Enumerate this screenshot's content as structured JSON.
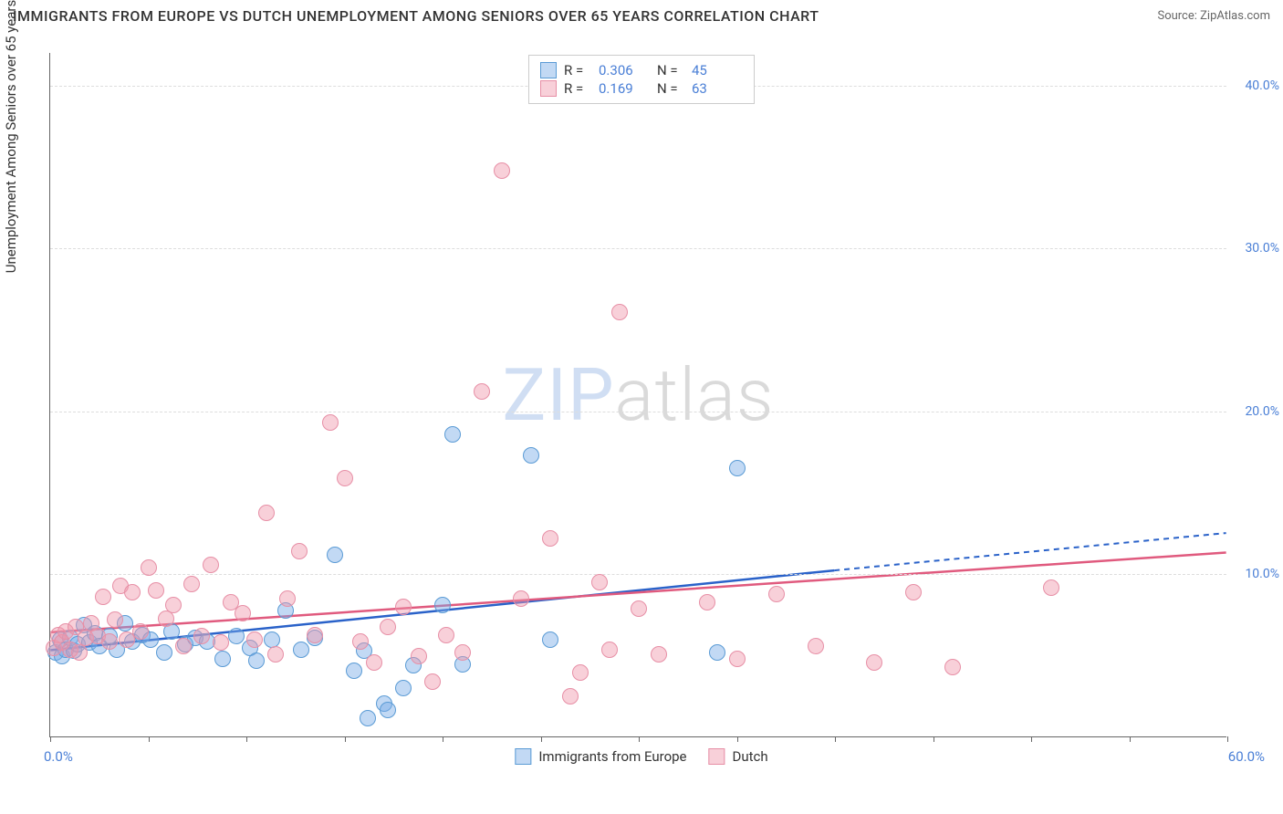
{
  "title": "IMMIGRANTS FROM EUROPE VS DUTCH UNEMPLOYMENT AMONG SENIORS OVER 65 YEARS CORRELATION CHART",
  "source": "Source: ZipAtlas.com",
  "ylabel": "Unemployment Among Seniors over 65 years",
  "x_min_label": "0.0%",
  "x_max_label": "60.0%",
  "watermark_a": "ZIP",
  "watermark_b": "atlas",
  "chart": {
    "type": "scatter",
    "xlim": [
      0,
      60
    ],
    "ylim": [
      0,
      42
    ],
    "y_ticks": [
      10,
      20,
      30,
      40
    ],
    "y_tick_labels": [
      "10.0%",
      "20.0%",
      "30.0%",
      "40.0%"
    ],
    "x_tick_positions": [
      0,
      5,
      10,
      15,
      20,
      25,
      30,
      35,
      40,
      45,
      50,
      55,
      60
    ],
    "tick_label_color": "#4a7fd6",
    "grid_color": "#dddddd",
    "background_color": "#ffffff",
    "marker_radius": 9
  },
  "series": [
    {
      "name": "Immigrants from Europe",
      "fill": "rgba(120,170,230,0.45)",
      "stroke": "#5a9bd5",
      "line_color": "#2a62c9",
      "line_dash": "none",
      "ext_dash": "6,5",
      "R": "0.306",
      "N": "45",
      "trend": {
        "x1": 0,
        "y1": 5.3,
        "x2": 40,
        "y2": 10.2,
        "ext_x": 60,
        "ext_y": 12.5
      },
      "points": [
        [
          0.3,
          5.2
        ],
        [
          0.5,
          6.0
        ],
        [
          0.6,
          5.0
        ],
        [
          0.8,
          5.4
        ],
        [
          1.0,
          6.1
        ],
        [
          1.2,
          5.3
        ],
        [
          1.4,
          5.7
        ],
        [
          1.7,
          6.9
        ],
        [
          2.0,
          5.8
        ],
        [
          2.3,
          6.4
        ],
        [
          2.5,
          5.6
        ],
        [
          3.0,
          6.2
        ],
        [
          3.4,
          5.4
        ],
        [
          3.8,
          7.0
        ],
        [
          4.2,
          5.9
        ],
        [
          4.7,
          6.3
        ],
        [
          5.1,
          6.0
        ],
        [
          5.8,
          5.2
        ],
        [
          6.2,
          6.5
        ],
        [
          6.9,
          5.7
        ],
        [
          7.4,
          6.1
        ],
        [
          8.0,
          5.9
        ],
        [
          8.8,
          4.8
        ],
        [
          9.5,
          6.2
        ],
        [
          10.2,
          5.5
        ],
        [
          10.5,
          4.7
        ],
        [
          11.3,
          6.0
        ],
        [
          12.0,
          7.8
        ],
        [
          12.8,
          5.4
        ],
        [
          13.5,
          6.1
        ],
        [
          14.5,
          11.2
        ],
        [
          15.5,
          4.1
        ],
        [
          16.0,
          5.3
        ],
        [
          16.2,
          1.2
        ],
        [
          17.0,
          2.1
        ],
        [
          17.2,
          1.7
        ],
        [
          18.0,
          3.0
        ],
        [
          18.5,
          4.4
        ],
        [
          20.0,
          8.1
        ],
        [
          20.5,
          18.6
        ],
        [
          21.0,
          4.5
        ],
        [
          24.5,
          17.3
        ],
        [
          25.5,
          6.0
        ],
        [
          34.0,
          5.2
        ],
        [
          35.0,
          16.5
        ]
      ]
    },
    {
      "name": "Dutch",
      "fill": "rgba(240,150,170,0.45)",
      "stroke": "#e78fa6",
      "line_color": "#e05a7e",
      "line_dash": "none",
      "ext_dash": "none",
      "R": "0.169",
      "N": "63",
      "trend": {
        "x1": 0,
        "y1": 6.4,
        "x2": 60,
        "y2": 11.3,
        "ext_x": 60,
        "ext_y": 11.3
      },
      "points": [
        [
          0.2,
          5.5
        ],
        [
          0.4,
          6.3
        ],
        [
          0.6,
          5.8
        ],
        [
          0.8,
          6.5
        ],
        [
          1.0,
          5.4
        ],
        [
          1.3,
          6.8
        ],
        [
          1.5,
          5.2
        ],
        [
          1.8,
          6.1
        ],
        [
          2.1,
          7.0
        ],
        [
          2.4,
          6.2
        ],
        [
          2.7,
          8.6
        ],
        [
          3.0,
          5.9
        ],
        [
          3.3,
          7.2
        ],
        [
          3.6,
          9.3
        ],
        [
          3.9,
          6.0
        ],
        [
          4.2,
          8.9
        ],
        [
          4.6,
          6.5
        ],
        [
          5.0,
          10.4
        ],
        [
          5.4,
          9.0
        ],
        [
          5.9,
          7.3
        ],
        [
          6.3,
          8.1
        ],
        [
          6.8,
          5.6
        ],
        [
          7.2,
          9.4
        ],
        [
          7.7,
          6.2
        ],
        [
          8.2,
          10.6
        ],
        [
          8.7,
          5.8
        ],
        [
          9.2,
          8.3
        ],
        [
          9.8,
          7.6
        ],
        [
          10.4,
          6.0
        ],
        [
          11.0,
          13.8
        ],
        [
          11.5,
          5.1
        ],
        [
          12.1,
          8.5
        ],
        [
          12.7,
          11.4
        ],
        [
          13.5,
          6.3
        ],
        [
          14.3,
          19.3
        ],
        [
          15.0,
          15.9
        ],
        [
          15.8,
          5.9
        ],
        [
          16.5,
          4.6
        ],
        [
          17.2,
          6.8
        ],
        [
          18.0,
          8.0
        ],
        [
          18.8,
          5.0
        ],
        [
          19.5,
          3.4
        ],
        [
          20.2,
          6.3
        ],
        [
          21.0,
          5.2
        ],
        [
          22.0,
          21.2
        ],
        [
          23.0,
          34.8
        ],
        [
          24.0,
          8.5
        ],
        [
          25.5,
          12.2
        ],
        [
          26.5,
          2.5
        ],
        [
          27.0,
          4.0
        ],
        [
          28.0,
          9.5
        ],
        [
          28.5,
          5.4
        ],
        [
          29.0,
          26.1
        ],
        [
          30.0,
          7.9
        ],
        [
          31.0,
          5.1
        ],
        [
          33.5,
          8.3
        ],
        [
          35.0,
          4.8
        ],
        [
          37.0,
          8.8
        ],
        [
          39.0,
          5.6
        ],
        [
          42.0,
          4.6
        ],
        [
          44.0,
          8.9
        ],
        [
          46.0,
          4.3
        ],
        [
          51.0,
          9.2
        ]
      ]
    }
  ],
  "stats_legend_title_r": "R =",
  "stats_legend_title_n": "N =",
  "bottom_legend": {
    "items": [
      "Immigrants from Europe",
      "Dutch"
    ]
  }
}
